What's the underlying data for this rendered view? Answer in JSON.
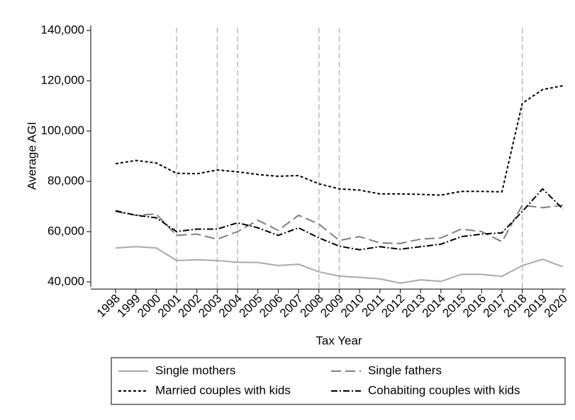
{
  "chart_data": {
    "type": "line",
    "xlabel": "Tax Year",
    "ylabel": "Average AGI",
    "x": [
      1998,
      1999,
      2000,
      2001,
      2002,
      2003,
      2004,
      2005,
      2006,
      2007,
      2008,
      2009,
      2010,
      2011,
      2012,
      2013,
      2014,
      2015,
      2016,
      2017,
      2018,
      2019,
      2020
    ],
    "xlim": [
      1998,
      2020
    ],
    "xticks": [
      1998,
      1999,
      2000,
      2001,
      2002,
      2003,
      2004,
      2005,
      2006,
      2007,
      2008,
      2009,
      2010,
      2011,
      2012,
      2013,
      2014,
      2015,
      2016,
      2017,
      2018,
      2019,
      2020
    ],
    "ylim": [
      38000,
      142000
    ],
    "yticks": [
      {
        "value": 40000,
        "label": "40,000"
      },
      {
        "value": 60000,
        "label": "60,000"
      },
      {
        "value": 80000,
        "label": "80,000"
      },
      {
        "value": 100000,
        "label": "100,000"
      },
      {
        "value": 120000,
        "label": "120,000"
      },
      {
        "value": 140000,
        "label": "140,000"
      }
    ],
    "vlines": [
      2001,
      2003,
      2004,
      2008,
      2009,
      2018
    ],
    "series": [
      {
        "name": "Single mothers",
        "color": "#aaaaaa",
        "dash": "none",
        "values": [
          53500,
          54000,
          53500,
          48500,
          48800,
          48500,
          47800,
          47700,
          46500,
          47000,
          44000,
          42300,
          41800,
          41200,
          39500,
          40800,
          40200,
          43000,
          43000,
          42200,
          46500,
          49000,
          46000
        ]
      },
      {
        "name": "Single fathers",
        "color": "#7f7f7f",
        "dash": "14,6",
        "values": [
          68000,
          66500,
          67000,
          58500,
          59000,
          57000,
          60000,
          64500,
          60500,
          66500,
          63000,
          56500,
          58000,
          55500,
          55300,
          57000,
          57500,
          61000,
          60000,
          56000,
          70500,
          69500,
          70500
        ]
      },
      {
        "name": "Married couples with kids",
        "color": "#000000",
        "dash": "4,3",
        "values": [
          87000,
          88300,
          87300,
          83200,
          83000,
          84500,
          83800,
          82700,
          82000,
          82300,
          79000,
          77000,
          76500,
          75000,
          75000,
          74800,
          74500,
          76000,
          76000,
          75800,
          111000,
          116500,
          118000
        ]
      },
      {
        "name": "Cohabiting couples with kids",
        "color": "#000000",
        "dash": "9,3,2,3",
        "values": [
          68300,
          66500,
          65500,
          60000,
          61000,
          61000,
          63500,
          61500,
          58500,
          61500,
          57500,
          54200,
          52800,
          54000,
          53000,
          54000,
          55000,
          58000,
          59000,
          59500,
          68000,
          77000,
          69000
        ]
      }
    ]
  }
}
